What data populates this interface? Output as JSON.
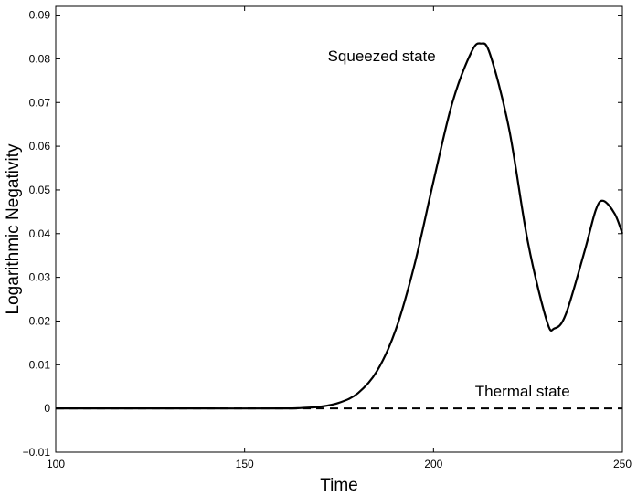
{
  "chart_data": {
    "type": "line",
    "title": "",
    "xlabel": "Time",
    "ylabel": "Logarithmic Negativity",
    "xlim": [
      100,
      250
    ],
    "ylim": [
      -0.01,
      0.092
    ],
    "xticks": [
      100,
      150,
      200,
      250
    ],
    "xtick_labels": [
      "100",
      "150",
      "200",
      "250"
    ],
    "yticks": [
      -0.01,
      0,
      0.01,
      0.02,
      0.03,
      0.04,
      0.05,
      0.06,
      0.07,
      0.08,
      0.09
    ],
    "ytick_labels": [
      "−0.01",
      "0",
      "0.01",
      "0.02",
      "0.03",
      "0.04",
      "0.05",
      "0.06",
      "0.07",
      "0.08",
      "0.09"
    ],
    "grid": false,
    "series": [
      {
        "name": "Squeezed state",
        "style": "solid",
        "color": "#000000",
        "x": [
          100,
          120,
          140,
          160,
          165,
          170,
          175,
          180,
          185,
          190,
          195,
          200,
          205,
          210,
          212.5,
          215,
          220,
          225,
          230,
          232,
          235,
          240,
          243,
          245,
          248,
          250
        ],
        "y": [
          0,
          0,
          0,
          0,
          0.0001,
          0.0004,
          0.0013,
          0.0035,
          0.0085,
          0.018,
          0.033,
          0.052,
          0.07,
          0.0815,
          0.0835,
          0.081,
          0.064,
          0.038,
          0.02,
          0.0183,
          0.0215,
          0.036,
          0.0455,
          0.0475,
          0.0445,
          0.04
        ]
      },
      {
        "name": "Thermal state",
        "style": "dashed",
        "color": "#000000",
        "x": [
          100,
          250
        ],
        "y": [
          0,
          0
        ]
      }
    ],
    "annotations": [
      {
        "text": "Squeezed state",
        "x": 172,
        "y": 0.0795
      },
      {
        "text": "Thermal state",
        "x": 211,
        "y": 0.0028
      }
    ]
  }
}
